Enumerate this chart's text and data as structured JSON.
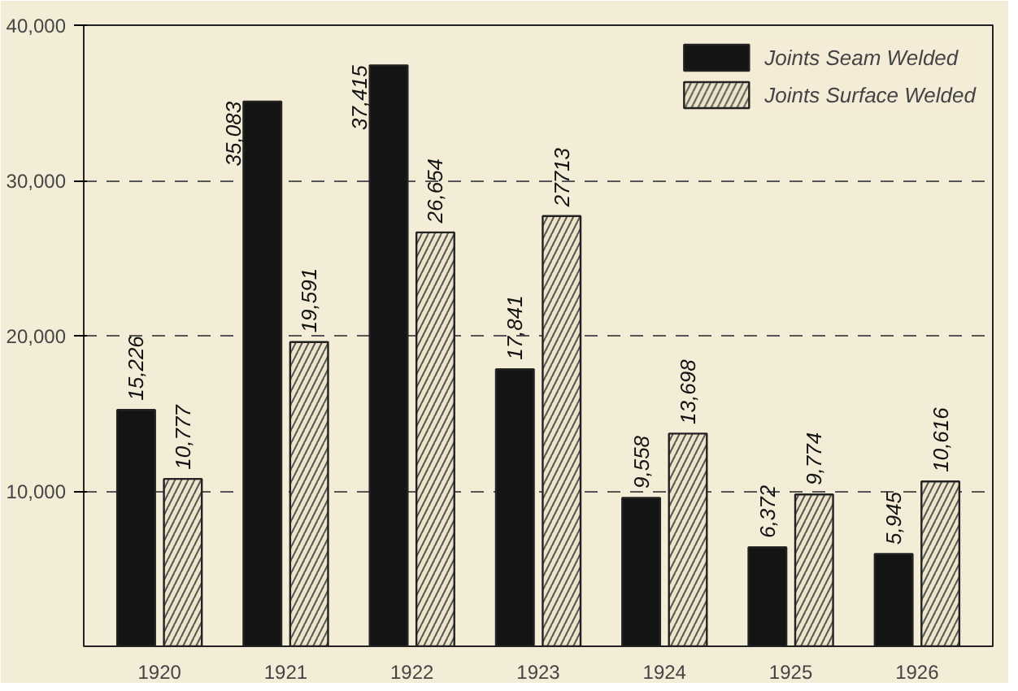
{
  "chart_data": {
    "type": "bar",
    "categories": [
      "1920",
      "1921",
      "1922",
      "1923",
      "1924",
      "1925",
      "1926"
    ],
    "series": [
      {
        "name": "Joints Seam Welded",
        "color": "#141414",
        "values": [
          15226,
          35083,
          37415,
          17841,
          9558,
          6372,
          5945
        ],
        "value_labels": [
          "15,226",
          "35,083",
          "37,415",
          "17,841",
          "9,558",
          "6,372",
          "5,945"
        ]
      },
      {
        "name": "Joints Surface Welded",
        "color": "#ece3c8",
        "values": [
          10777,
          19591,
          26654,
          27713,
          13698,
          9774,
          10616
        ],
        "value_labels": [
          "10,777",
          "19,591",
          "26,654",
          "27713",
          "13,698",
          "9,774",
          "10,616"
        ]
      }
    ],
    "ylim": [
      0,
      40000
    ],
    "yticks": [
      {
        "value": 10000,
        "label": "10,000"
      },
      {
        "value": 20000,
        "label": "20,000"
      },
      {
        "value": 30000,
        "label": "30,000"
      },
      {
        "value": 40000,
        "label": "40,000"
      }
    ],
    "grid": "y",
    "legend": "top right"
  }
}
